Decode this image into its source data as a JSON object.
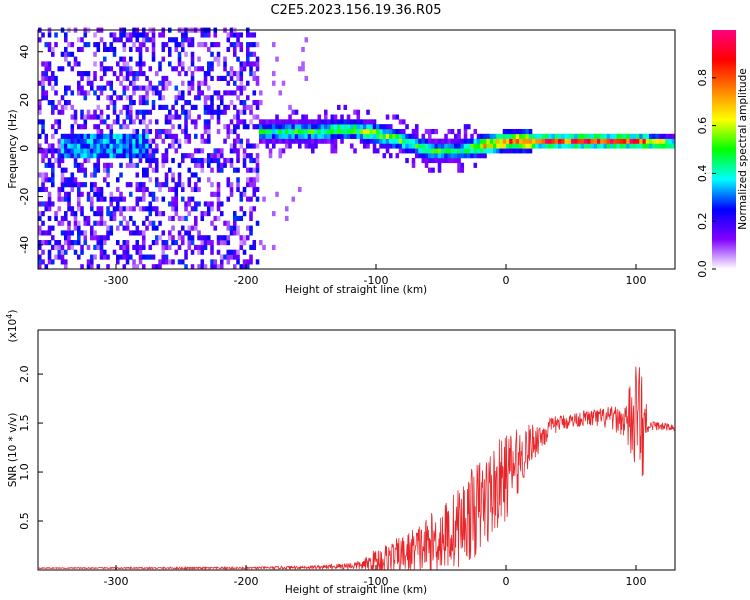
{
  "figure": {
    "title": "C2E5.2023.156.19.36.R05"
  },
  "chart_data": [
    {
      "type": "heatmap",
      "xlabel": "Height of straight line (km)",
      "ylabel": "Frequency (Hz)",
      "xlim": [
        -360,
        130
      ],
      "ylim": [
        -50,
        49
      ],
      "xticks": [
        -300,
        -200,
        -100,
        0,
        100
      ],
      "yticks": [
        -40,
        -20,
        0,
        20,
        40
      ],
      "colorbar": {
        "label": "Normalized spectral amplitude",
        "range": [
          0,
          1
        ],
        "ticks": [
          0.0,
          0.2,
          0.4,
          0.6,
          0.8
        ],
        "colors": [
          "#ffffff",
          "#8000ff",
          "#0000ff",
          "#00ffff",
          "#00ff00",
          "#ffff00",
          "#ff8000",
          "#ff0000",
          "#ff0080"
        ]
      },
      "ridge": {
        "x": [
          -190,
          -150,
          -120,
          -100,
          -80,
          -60,
          -40,
          -20,
          0,
          50,
          100,
          130
        ],
        "center": [
          6,
          6,
          7,
          5,
          2,
          -2,
          -2,
          0,
          2,
          2,
          2,
          1
        ],
        "amplitude": [
          0.45,
          0.5,
          0.55,
          0.6,
          0.55,
          0.5,
          0.45,
          0.7,
          0.85,
          0.9,
          0.9,
          0.55
        ]
      },
      "noise_region": {
        "x": [
          -360,
          -190
        ],
        "amplitude": 0.25
      }
    },
    {
      "type": "line",
      "xlabel": "Height of straight line (km)",
      "ylabel": "SNR (10 * v/v)",
      "yscale_label": "(x10",
      "yscale_exp": "4",
      "yscale_close": ")",
      "xlim": [
        -360,
        130
      ],
      "ylim": [
        0,
        2.45
      ],
      "xticks": [
        -300,
        -200,
        -100,
        0,
        100
      ],
      "yticks": [
        0.5,
        1.0,
        1.5,
        2.0
      ],
      "color": "#e8262a",
      "envelope": {
        "x": [
          -360,
          -200,
          -140,
          -110,
          -100,
          -80,
          -60,
          -40,
          -20,
          0,
          20,
          40,
          60,
          80,
          90,
          100,
          105,
          110,
          130
        ],
        "base": [
          0.02,
          0.02,
          0.03,
          0.05,
          0.08,
          0.15,
          0.25,
          0.4,
          0.65,
          0.95,
          1.3,
          1.5,
          1.55,
          1.55,
          1.52,
          1.5,
          1.3,
          1.48,
          1.45
        ],
        "spread": [
          0.005,
          0.01,
          0.02,
          0.05,
          0.15,
          0.2,
          0.3,
          0.4,
          0.5,
          0.45,
          0.2,
          0.08,
          0.08,
          0.12,
          0.15,
          0.6,
          1.2,
          0.05,
          0.03
        ]
      }
    }
  ]
}
